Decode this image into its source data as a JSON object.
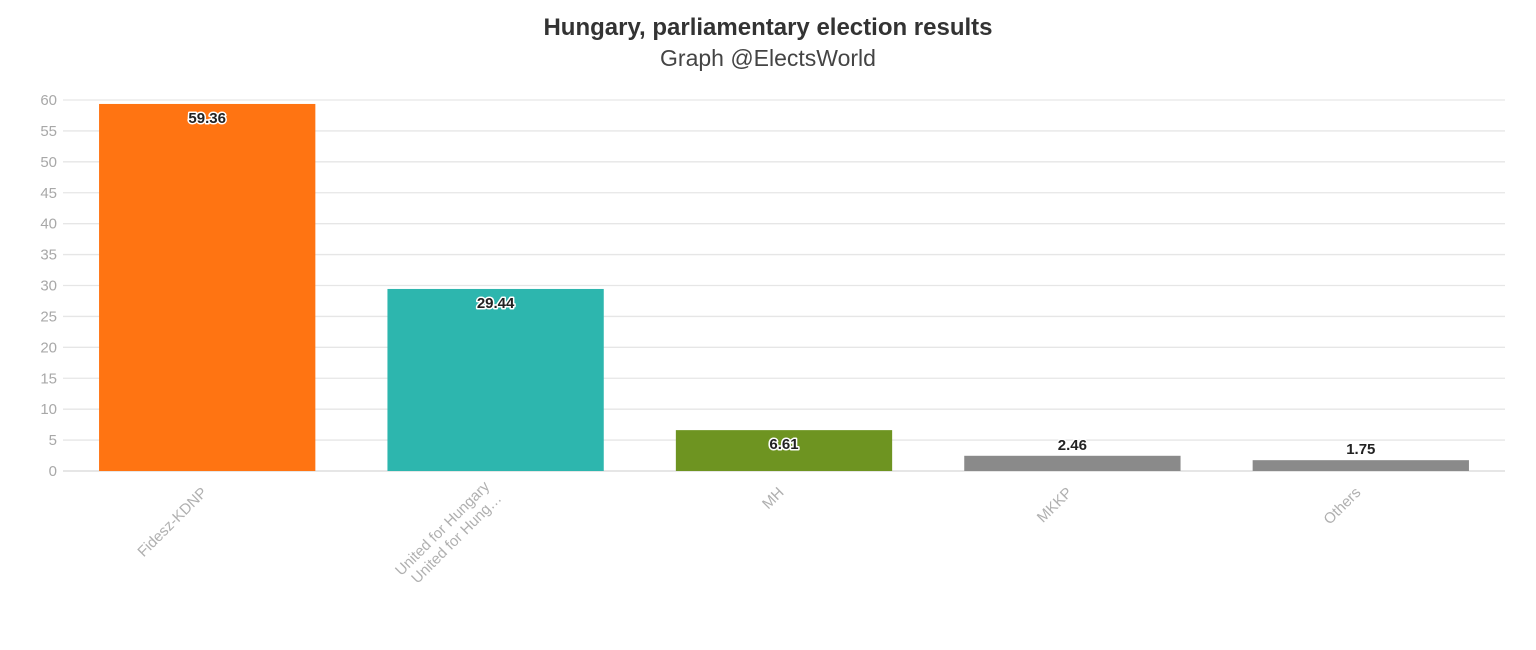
{
  "chart_data": {
    "type": "bar",
    "title": "Hungary, parliamentary election results",
    "subtitle": "Graph @ElectsWorld",
    "categories": [
      [
        "Fidesz-KDNP"
      ],
      [
        "United for Hungary",
        "United for Hung…"
      ],
      [
        "MH"
      ],
      [
        "MKKP"
      ],
      [
        "Others"
      ]
    ],
    "values": [
      59.36,
      29.44,
      6.61,
      2.46,
      1.75
    ],
    "value_labels": [
      "59.36",
      "29.44",
      "6.61",
      "2.46",
      "1.75"
    ],
    "colors": [
      "#ff7412",
      "#2db6ae",
      "#6e9421",
      "#8a8a8a",
      "#8a8a8a"
    ],
    "ylim": [
      0,
      60
    ],
    "y_ticks": [
      0,
      5,
      10,
      15,
      20,
      25,
      30,
      35,
      40,
      45,
      50,
      55,
      60
    ],
    "xlabel": "",
    "ylabel": "",
    "grid": true,
    "legend": "none"
  }
}
